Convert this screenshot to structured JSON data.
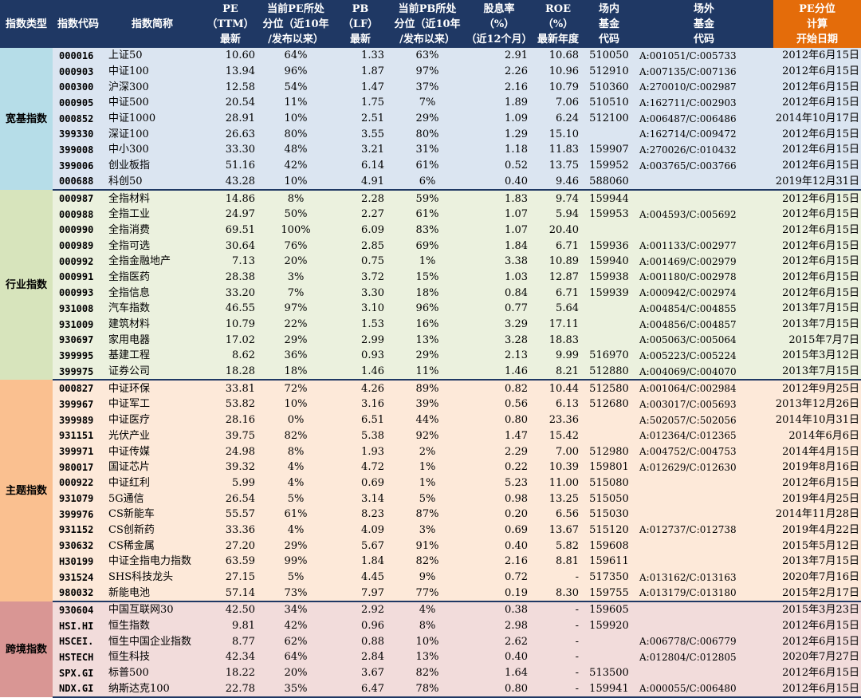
{
  "headers": [
    {
      "lines": [
        "指数类型"
      ],
      "hl": false
    },
    {
      "lines": [
        "指数代码"
      ],
      "hl": false
    },
    {
      "lines": [
        "指数简称"
      ],
      "hl": false
    },
    {
      "lines": [
        "PE",
        "（TTM）",
        "最新"
      ],
      "hl": false
    },
    {
      "lines": [
        "当前PE所处",
        "分位（近10年",
        "/发布以来）"
      ],
      "hl": false
    },
    {
      "lines": [
        "PB",
        "（LF）",
        "最新"
      ],
      "hl": false
    },
    {
      "lines": [
        "当前PB所处",
        "分位（近10年",
        "/发布以来）"
      ],
      "hl": false
    },
    {
      "lines": [
        "股息率",
        "（%）",
        "（近12个月）"
      ],
      "hl": false
    },
    {
      "lines": [
        "ROE",
        "（%）",
        "最新年度"
      ],
      "hl": false
    },
    {
      "lines": [
        "场内",
        "基金",
        "代码"
      ],
      "hl": false
    },
    {
      "lines": [
        "场外",
        "基金",
        "代码"
      ],
      "hl": false
    },
    {
      "lines": [
        "PE分位",
        "计算",
        "开始日期"
      ],
      "hl": true
    }
  ],
  "groups": [
    {
      "label": "宽基指数",
      "color": "#b6dde8",
      "rowColor": "#dbe5f1",
      "rows": [
        [
          "000016",
          "上证50",
          "10.60",
          "64%",
          "1.33",
          "63%",
          "2.91",
          "10.68",
          "510050",
          "A:001051/C:005733",
          "2012年6月15日"
        ],
        [
          "000903",
          "中证100",
          "13.94",
          "96%",
          "1.87",
          "97%",
          "2.26",
          "10.96",
          "512910",
          "A:007135/C:007136",
          "2012年6月15日"
        ],
        [
          "000300",
          "沪深300",
          "12.58",
          "54%",
          "1.47",
          "37%",
          "2.16",
          "10.79",
          "510360",
          "A:270010/C:002987",
          "2012年6月15日"
        ],
        [
          "000905",
          "中证500",
          "20.54",
          "11%",
          "1.75",
          "7%",
          "1.89",
          "7.06",
          "510510",
          "A:162711/C:002903",
          "2012年6月15日"
        ],
        [
          "000852",
          "中证1000",
          "28.91",
          "10%",
          "2.51",
          "29%",
          "1.09",
          "6.24",
          "512100",
          "A:006487/C:006486",
          "2014年10月17日"
        ],
        [
          "399330",
          "深证100",
          "26.63",
          "80%",
          "3.55",
          "80%",
          "1.29",
          "15.10",
          "",
          "A:162714/C:009472",
          "2012年6月15日"
        ],
        [
          "399008",
          "中小300",
          "33.30",
          "48%",
          "3.21",
          "31%",
          "1.18",
          "11.83",
          "159907",
          "A:270026/C:010432",
          "2012年6月15日"
        ],
        [
          "399006",
          "创业板指",
          "51.16",
          "42%",
          "6.14",
          "61%",
          "0.52",
          "13.75",
          "159952",
          "A:003765/C:003766",
          "2012年6月15日"
        ],
        [
          "000688",
          "科创50",
          "43.28",
          "10%",
          "4.91",
          "6%",
          "0.40",
          "9.46",
          "588060",
          "",
          "2019年12月31日"
        ]
      ]
    },
    {
      "label": "行业指数",
      "color": "#d7e4bc",
      "rowColor": "#ebf1de",
      "rows": [
        [
          "000987",
          "全指材料",
          "14.86",
          "8%",
          "2.28",
          "59%",
          "1.83",
          "9.74",
          "159944",
          "",
          "2012年6月15日"
        ],
        [
          "000988",
          "全指工业",
          "24.97",
          "50%",
          "2.27",
          "61%",
          "1.07",
          "5.94",
          "159953",
          "A:004593/C:005692",
          "2012年6月15日"
        ],
        [
          "000990",
          "全指消费",
          "69.51",
          "100%",
          "6.09",
          "83%",
          "1.07",
          "20.40",
          "",
          "",
          "2012年6月15日"
        ],
        [
          "000989",
          "全指可选",
          "30.64",
          "76%",
          "2.85",
          "69%",
          "1.84",
          "6.71",
          "159936",
          "A:001133/C:002977",
          "2012年6月15日"
        ],
        [
          "000992",
          "全指金融地产",
          "7.13",
          "20%",
          "0.75",
          "1%",
          "3.38",
          "10.89",
          "159940",
          "A:001469/C:002979",
          "2012年6月15日"
        ],
        [
          "000991",
          "全指医药",
          "28.38",
          "3%",
          "3.72",
          "15%",
          "1.03",
          "12.87",
          "159938",
          "A:001180/C:002978",
          "2012年6月15日"
        ],
        [
          "000993",
          "全指信息",
          "33.20",
          "7%",
          "3.30",
          "18%",
          "0.84",
          "6.71",
          "159939",
          "A:000942/C:002974",
          "2012年6月15日"
        ],
        [
          "931008",
          "汽车指数",
          "46.55",
          "97%",
          "3.10",
          "96%",
          "0.77",
          "5.64",
          "",
          "A:004854/C:004855",
          "2013年7月15日"
        ],
        [
          "931009",
          "建筑材料",
          "10.79",
          "22%",
          "1.53",
          "16%",
          "3.29",
          "17.11",
          "",
          "A:004856/C:004857",
          "2013年7月15日"
        ],
        [
          "930697",
          "家用电器",
          "17.02",
          "29%",
          "2.99",
          "13%",
          "3.28",
          "18.83",
          "",
          "A:005063/C:005064",
          "2015年7月7日"
        ],
        [
          "399995",
          "基建工程",
          "8.62",
          "36%",
          "0.93",
          "29%",
          "2.13",
          "9.99",
          "516970",
          "A:005223/C:005224",
          "2015年3月12日"
        ],
        [
          "399975",
          "证券公司",
          "18.28",
          "18%",
          "1.46",
          "11%",
          "1.46",
          "8.21",
          "512880",
          "A:004069/C:004070",
          "2013年7月15日"
        ]
      ]
    },
    {
      "label": "主题指数",
      "color": "#fac090",
      "rowColor": "#fde9d9",
      "rows": [
        [
          "000827",
          "中证环保",
          "33.81",
          "72%",
          "4.26",
          "89%",
          "0.82",
          "10.44",
          "512580",
          "A:001064/C:002984",
          "2012年9月25日"
        ],
        [
          "399967",
          "中证军工",
          "53.82",
          "10%",
          "3.16",
          "39%",
          "0.56",
          "6.13",
          "512680",
          "A:003017/C:005693",
          "2013年12月26日"
        ],
        [
          "399989",
          "中证医疗",
          "28.16",
          "0%",
          "6.51",
          "44%",
          "0.80",
          "23.36",
          "",
          "A:502057/C:502056",
          "2014年10月31日"
        ],
        [
          "931151",
          "光伏产业",
          "39.75",
          "82%",
          "5.38",
          "92%",
          "1.47",
          "15.42",
          "",
          "A:012364/C:012365",
          "2014年6月6日"
        ],
        [
          "399971",
          "中证传媒",
          "24.98",
          "8%",
          "1.93",
          "2%",
          "2.29",
          "7.00",
          "512980",
          "A:004752/C:004753",
          "2014年4月15日"
        ],
        [
          "980017",
          "国证芯片",
          "39.32",
          "4%",
          "4.72",
          "1%",
          "0.22",
          "10.39",
          "159801",
          "A:012629/C:012630",
          "2019年8月16日"
        ],
        [
          "000922",
          "中证红利",
          "5.99",
          "4%",
          "0.69",
          "1%",
          "5.23",
          "11.00",
          "515080",
          "",
          "2012年6月15日"
        ],
        [
          "931079",
          "5G通信",
          "26.54",
          "5%",
          "3.14",
          "5%",
          "0.98",
          "13.25",
          "515050",
          "",
          "2019年4月25日"
        ],
        [
          "399976",
          "CS新能车",
          "55.57",
          "61%",
          "8.23",
          "87%",
          "0.20",
          "6.56",
          "515030",
          "",
          "2014年11月28日"
        ],
        [
          "931152",
          "CS创新药",
          "33.36",
          "4%",
          "4.09",
          "3%",
          "0.69",
          "13.67",
          "515120",
          "A:012737/C:012738",
          "2019年4月22日"
        ],
        [
          "930632",
          "CS稀金属",
          "27.20",
          "29%",
          "5.67",
          "91%",
          "0.40",
          "5.82",
          "159608",
          "",
          "2015年5月12日"
        ],
        [
          "H30199",
          "中证全指电力指数",
          "63.59",
          "99%",
          "1.84",
          "82%",
          "2.16",
          "8.81",
          "159611",
          "",
          "2013年7月15日"
        ],
        [
          "931524",
          "SHS科技龙头",
          "27.15",
          "5%",
          "4.45",
          "9%",
          "0.72",
          "-",
          "517350",
          "A:013162/C:013163",
          "2020年7月16日"
        ],
        [
          "980032",
          "新能电池",
          "57.14",
          "73%",
          "7.97",
          "77%",
          "0.19",
          "8.30",
          "159755",
          "A:013179/C:013180",
          "2015年2月17日"
        ]
      ]
    },
    {
      "label": "跨境指数",
      "color": "#d99694",
      "rowColor": "#f2dcdb",
      "rows": [
        [
          "930604",
          "中国互联网30",
          "42.50",
          "34%",
          "2.92",
          "4%",
          "0.38",
          "-",
          "159605",
          "",
          "2015年3月23日"
        ],
        [
          "HSI.HI",
          "恒生指数",
          "9.81",
          "42%",
          "0.96",
          "8%",
          "2.98",
          "-",
          "159920",
          "",
          "2012年6月15日"
        ],
        [
          "HSCEI.",
          "恒生中国企业指数",
          "8.77",
          "62%",
          "0.88",
          "10%",
          "2.62",
          "-",
          "",
          "A:006778/C:006779",
          "2012年6月15日"
        ],
        [
          "HSTECH",
          "恒生科技",
          "42.34",
          "64%",
          "2.84",
          "13%",
          "0.40",
          "-",
          "",
          "A:012804/C:012805",
          "2020年7月27日"
        ],
        [
          "SPX.GI",
          "标普500",
          "18.22",
          "20%",
          "3.67",
          "82%",
          "1.64",
          "-",
          "513500",
          "",
          "2012年6月15日"
        ],
        [
          "NDX.GI",
          "纳斯达克100",
          "22.78",
          "35%",
          "6.47",
          "78%",
          "0.80",
          "-",
          "159941",
          "A:000055/C:006480",
          "2012年6月15日"
        ]
      ]
    }
  ]
}
